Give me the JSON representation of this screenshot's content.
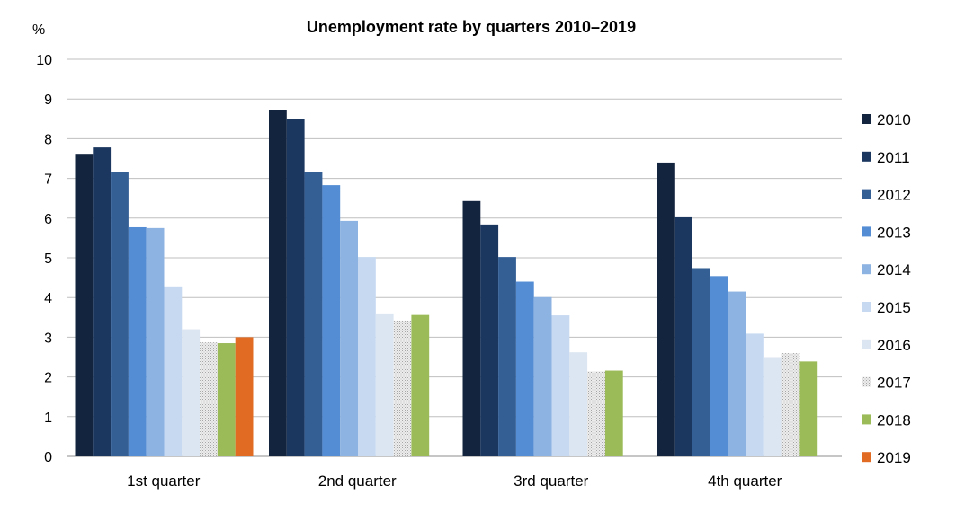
{
  "chart_data": {
    "type": "bar",
    "title": "Unemployment rate by quarters 2010–2019",
    "ylabel": "%",
    "xlabel": "",
    "ylim": [
      0,
      10
    ],
    "yticks": [
      "0",
      "1",
      "2",
      "3",
      "4",
      "5",
      "6",
      "7",
      "8",
      "9",
      "10"
    ],
    "grid": true,
    "legend_position": "right",
    "categories": [
      "1st quarter",
      "2nd quarter",
      "3rd quarter",
      "4th quarter"
    ],
    "series": [
      {
        "name": "2010",
        "color": "#13243f",
        "values": [
          7.62,
          8.72,
          6.43,
          7.4
        ]
      },
      {
        "name": "2011",
        "color": "#1b365f",
        "values": [
          7.78,
          8.5,
          5.84,
          6.02
        ]
      },
      {
        "name": "2012",
        "color": "#335f95",
        "values": [
          7.17,
          7.17,
          5.02,
          4.74
        ]
      },
      {
        "name": "2013",
        "color": "#548dd4",
        "values": [
          5.77,
          6.83,
          4.4,
          4.54
        ]
      },
      {
        "name": "2014",
        "color": "#8db3e2",
        "values": [
          5.75,
          5.93,
          4.01,
          4.15
        ]
      },
      {
        "name": "2015",
        "color": "#c6d9f1",
        "values": [
          4.28,
          5.02,
          3.55,
          3.09
        ]
      },
      {
        "name": "2016",
        "color": "#dce6f2",
        "values": [
          3.2,
          3.6,
          2.62,
          2.5
        ]
      },
      {
        "name": "2017",
        "color": "#d9d9d9",
        "pattern": true,
        "values": [
          2.87,
          3.42,
          2.14,
          2.6
        ]
      },
      {
        "name": "2018",
        "color": "#9bbb59",
        "values": [
          2.85,
          3.56,
          2.16,
          2.39
        ]
      },
      {
        "name": "2019",
        "color": "#e26b23",
        "values": [
          3.0,
          null,
          null,
          null
        ]
      }
    ]
  }
}
